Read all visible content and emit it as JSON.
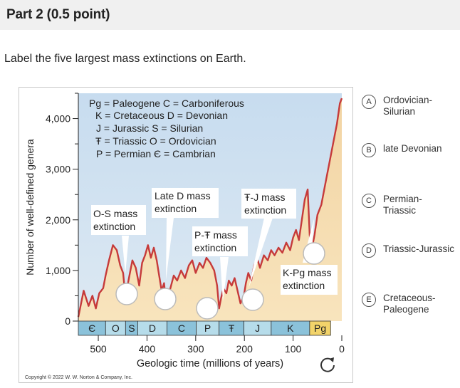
{
  "header": {
    "title": "Part 2   (0.5 point)"
  },
  "instruction": "Label the five largest mass extinctions on Earth.",
  "figure": {
    "legend": [
      "Pg = Paleogene  C = Carboniferous",
      "K = Cretaceous D = Devonian",
      "J = Jurassic     S = Silurian",
      "Ŧ = Triassic      O = Ordovician",
      "P = Permian      Є = Cambrian"
    ],
    "callouts": {
      "os": [
        "O-S mass",
        "extinction"
      ],
      "late_d": [
        "Late D mass",
        "extinction"
      ],
      "ptr": [
        "P-Ŧ mass",
        "extinction"
      ],
      "trj": [
        "Ŧ-J mass",
        "extinction"
      ],
      "kpg": [
        "K-Pg mass",
        "extinction"
      ]
    },
    "copyright": "Copyright © 2022 W. W. Norton & Company, Inc.",
    "chart_data": {
      "type": "line",
      "ylabel": "Number of well-defined genera",
      "xlabel": "Geologic time (millions of years)",
      "yticks": [
        "0",
        "1,000",
        "2,000",
        "3,000",
        "4,000"
      ],
      "xticks": [
        "500",
        "400",
        "300",
        "200",
        "100",
        "0"
      ],
      "periods": [
        "Є",
        "O",
        "S",
        "D",
        "C",
        "P",
        "Ŧ",
        "J",
        "K",
        "Pg"
      ],
      "xlim": [
        541,
        0
      ],
      "ylim": [
        0,
        4500
      ],
      "x": [
        541,
        530,
        520,
        512,
        505,
        498,
        490,
        485,
        478,
        470,
        462,
        455,
        449,
        444,
        438,
        430,
        423,
        416,
        410,
        404,
        398,
        392,
        386,
        380,
        375,
        370,
        365,
        360,
        352,
        345,
        338,
        330,
        322,
        314,
        307,
        300,
        292,
        285,
        278,
        270,
        262,
        256,
        252,
        248,
        243,
        237,
        232,
        226,
        220,
        214,
        208,
        201,
        197,
        192,
        186,
        180,
        174,
        168,
        160,
        152,
        145,
        138,
        130,
        122,
        114,
        106,
        100,
        94,
        88,
        82,
        76,
        70,
        66,
        62,
        56,
        50,
        42,
        34,
        26,
        18,
        10,
        4,
        0
      ],
      "values": [
        80,
        600,
        300,
        500,
        250,
        550,
        650,
        900,
        1200,
        1500,
        1400,
        1100,
        950,
        450,
        800,
        1200,
        1050,
        700,
        1150,
        1300,
        1500,
        1250,
        1450,
        1200,
        900,
        600,
        750,
        300,
        650,
        900,
        800,
        1000,
        850,
        1100,
        1200,
        950,
        1150,
        1050,
        1250,
        1150,
        1000,
        700,
        250,
        450,
        650,
        550,
        800,
        700,
        850,
        600,
        350,
        500,
        750,
        950,
        800,
        1100,
        1250,
        1050,
        1300,
        1200,
        1400,
        1300,
        1450,
        1350,
        1550,
        1400,
        1650,
        1800,
        1600,
        2000,
        2400,
        2600,
        1700,
        1400,
        1700,
        2100,
        2300,
        2700,
        3100,
        3500,
        3900,
        4300,
        4400
      ]
    }
  },
  "options": [
    {
      "letter": "A",
      "label": "Ordovician-Silurian"
    },
    {
      "letter": "B",
      "label": "late Devonian"
    },
    {
      "letter": "C",
      "label": "Permian-Triassic"
    },
    {
      "letter": "D",
      "label": "Triassic-Jurassic"
    },
    {
      "letter": "E",
      "label": "Cretaceous-Paleogene"
    }
  ]
}
